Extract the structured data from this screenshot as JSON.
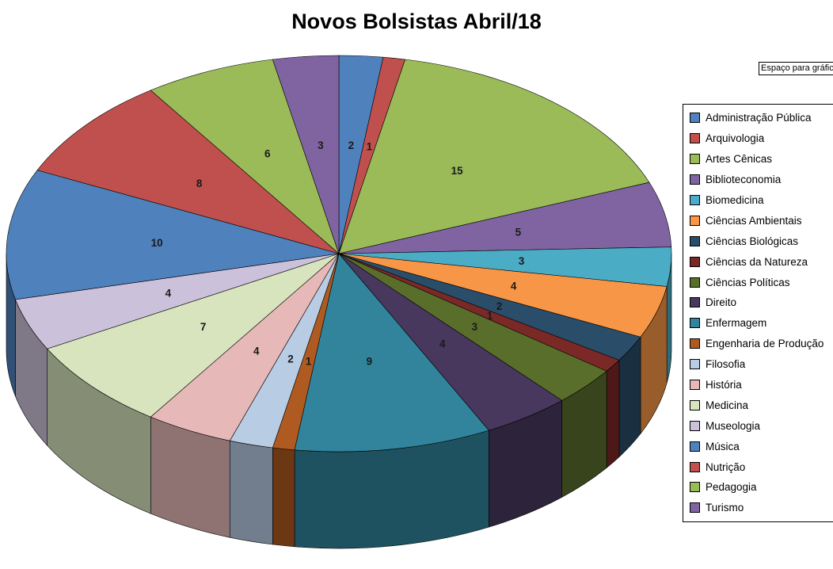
{
  "title": "Novos Bolsistas Abril/18",
  "textbox_text": "Espaço para gráfic",
  "chart_data": {
    "type": "pie",
    "is_3d": true,
    "title": "Novos Bolsistas Abril/18",
    "start_angle_deg": 0,
    "direction": "clockwise",
    "data_labels": "value",
    "legend_position": "right",
    "total": 94,
    "categories": [
      "Administração Pública",
      "Arquivologia",
      "Artes Cênicas",
      "Biblioteconomia",
      "Biomedicina",
      "Ciências Ambientais",
      "Ciências Biológicas",
      "Ciências da Natureza",
      "Ciências Políticas",
      "Direito",
      "Enfermagem",
      "Engenharia de Produção",
      "Filosofia",
      "História",
      "Medicina",
      "Museologia",
      "Música",
      "Nutrição",
      "Pedagogia",
      "Turismo"
    ],
    "values": [
      2,
      1,
      15,
      5,
      3,
      4,
      2,
      1,
      3,
      4,
      9,
      1,
      2,
      4,
      7,
      4,
      10,
      8,
      6,
      3
    ],
    "colors": [
      "#4F81BD",
      "#C0504D",
      "#9BBB59",
      "#8064A2",
      "#4BACC6",
      "#F79646",
      "#2A4D69",
      "#7B2927",
      "#5A6E2B",
      "#49385E",
      "#31849B",
      "#AE5A21",
      "#B8CCE4",
      "#E6B9B8",
      "#D7E4BD",
      "#CCC1DA",
      "#4F81BD",
      "#C0504D",
      "#9BBB59",
      "#8064A2"
    ]
  }
}
